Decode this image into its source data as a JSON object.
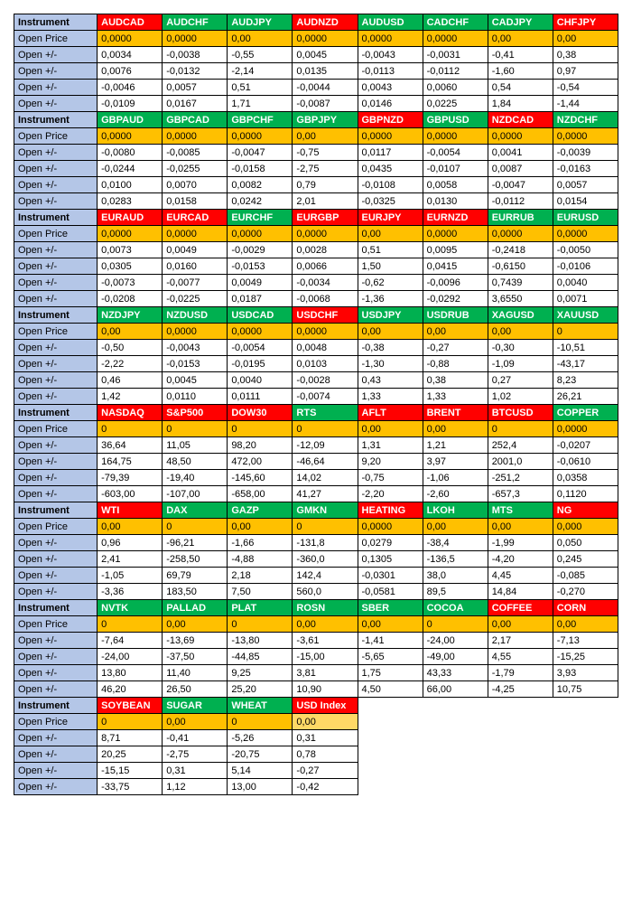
{
  "labels": {
    "instrument": "Instrument",
    "open_price": "Open Price",
    "open_pm": "Open +/-"
  },
  "colors": {
    "label_bg": "#b4c6e7",
    "open_price_bg": "#ffc000",
    "green": "#00b050",
    "red": "#ff0000",
    "white": "#ffffff",
    "lightorange": "#ffd966"
  },
  "typography": {
    "font_family": "Arial",
    "font_size_pt": 11,
    "header_weight": "bold"
  },
  "blocks": [
    {
      "instruments": [
        {
          "name": "AUDCAD",
          "color": "red"
        },
        {
          "name": "AUDCHF",
          "color": "green"
        },
        {
          "name": "AUDJPY",
          "color": "green"
        },
        {
          "name": "AUDNZD",
          "color": "red"
        },
        {
          "name": "AUDUSD",
          "color": "green"
        },
        {
          "name": "CADCHF",
          "color": "green"
        },
        {
          "name": "CADJPY",
          "color": "green"
        },
        {
          "name": "CHFJPY",
          "color": "red"
        }
      ],
      "open_price": [
        "0,0000",
        "0,0000",
        "0,00",
        "0,0000",
        "0,0000",
        "0,0000",
        "0,00",
        "0,00"
      ],
      "rows": [
        [
          "0,0034",
          "-0,0038",
          "-0,55",
          "0,0045",
          "-0,0043",
          "-0,0031",
          "-0,41",
          "0,38"
        ],
        [
          "0,0076",
          "-0,0132",
          "-2,14",
          "0,0135",
          "-0,0113",
          "-0,0112",
          "-1,60",
          "0,97"
        ],
        [
          "-0,0046",
          "0,0057",
          "0,51",
          "-0,0044",
          "0,0043",
          "0,0060",
          "0,54",
          "-0,54"
        ],
        [
          "-0,0109",
          "0,0167",
          "1,71",
          "-0,0087",
          "0,0146",
          "0,0225",
          "1,84",
          "-1,44"
        ]
      ]
    },
    {
      "instruments": [
        {
          "name": "GBPAUD",
          "color": "green"
        },
        {
          "name": "GBPCAD",
          "color": "green"
        },
        {
          "name": "GBPCHF",
          "color": "green"
        },
        {
          "name": "GBPJPY",
          "color": "green"
        },
        {
          "name": "GBPNZD",
          "color": "red"
        },
        {
          "name": "GBPUSD",
          "color": "green"
        },
        {
          "name": "NZDCAD",
          "color": "red"
        },
        {
          "name": "NZDCHF",
          "color": "green"
        }
      ],
      "open_price": [
        "0,0000",
        "0,0000",
        "0,0000",
        "0,00",
        "0,0000",
        "0,0000",
        "0,0000",
        "0,0000"
      ],
      "rows": [
        [
          "-0,0080",
          "-0,0085",
          "-0,0047",
          "-0,75",
          "0,0117",
          "-0,0054",
          "0,0041",
          "-0,0039"
        ],
        [
          "-0,0244",
          "-0,0255",
          "-0,0158",
          "-2,75",
          "0,0435",
          "-0,0107",
          "0,0087",
          "-0,0163"
        ],
        [
          "0,0100",
          "0,0070",
          "0,0082",
          "0,79",
          "-0,0108",
          "0,0058",
          "-0,0047",
          "0,0057"
        ],
        [
          "0,0283",
          "0,0158",
          "0,0242",
          "2,01",
          "-0,0325",
          "0,0130",
          "-0,0112",
          "0,0154"
        ]
      ]
    },
    {
      "instruments": [
        {
          "name": "EURAUD",
          "color": "red"
        },
        {
          "name": "EURCAD",
          "color": "red"
        },
        {
          "name": "EURCHF",
          "color": "green"
        },
        {
          "name": "EURGBP",
          "color": "red"
        },
        {
          "name": "EURJPY",
          "color": "red"
        },
        {
          "name": "EURNZD",
          "color": "red"
        },
        {
          "name": "EURRUB",
          "color": "green"
        },
        {
          "name": "EURUSD",
          "color": "green"
        }
      ],
      "open_price": [
        "0,0000",
        "0,0000",
        "0,0000",
        "0,0000",
        "0,00",
        "0,0000",
        "0,0000",
        "0,0000"
      ],
      "rows": [
        [
          "0,0073",
          "0,0049",
          "-0,0029",
          "0,0028",
          "0,51",
          "0,0095",
          "-0,2418",
          "-0,0050"
        ],
        [
          "0,0305",
          "0,0160",
          "-0,0153",
          "0,0066",
          "1,50",
          "0,0415",
          "-0,6150",
          "-0,0106"
        ],
        [
          "-0,0073",
          "-0,0077",
          "0,0049",
          "-0,0034",
          "-0,62",
          "-0,0096",
          "0,7439",
          "0,0040"
        ],
        [
          "-0,0208",
          "-0,0225",
          "0,0187",
          "-0,0068",
          "-1,36",
          "-0,0292",
          "3,6550",
          "0,0071"
        ]
      ]
    },
    {
      "instruments": [
        {
          "name": "NZDJPY",
          "color": "green"
        },
        {
          "name": "NZDUSD",
          "color": "green"
        },
        {
          "name": "USDCAD",
          "color": "green"
        },
        {
          "name": "USDCHF",
          "color": "red"
        },
        {
          "name": "USDJPY",
          "color": "green"
        },
        {
          "name": "USDRUB",
          "color": "green"
        },
        {
          "name": "XAGUSD",
          "color": "green"
        },
        {
          "name": "XAUUSD",
          "color": "green"
        }
      ],
      "open_price": [
        "0,00",
        "0,0000",
        "0,0000",
        "0,0000",
        "0,00",
        "0,00",
        "0,00",
        "0"
      ],
      "rows": [
        [
          "-0,50",
          "-0,0043",
          "-0,0054",
          "0,0048",
          "-0,38",
          "-0,27",
          "-0,30",
          "-10,51"
        ],
        [
          "-2,22",
          "-0,0153",
          "-0,0195",
          "0,0103",
          "-1,30",
          "-0,88",
          "-1,09",
          "-43,17"
        ],
        [
          "0,46",
          "0,0045",
          "0,0040",
          "-0,0028",
          "0,43",
          "0,38",
          "0,27",
          "8,23"
        ],
        [
          "1,42",
          "0,0110",
          "0,0111",
          "-0,0074",
          "1,33",
          "1,33",
          "1,02",
          "26,21"
        ]
      ]
    },
    {
      "instruments": [
        {
          "name": "NASDAQ",
          "color": "red"
        },
        {
          "name": "S&P500",
          "color": "red"
        },
        {
          "name": "DOW30",
          "color": "red"
        },
        {
          "name": "RTS",
          "color": "green"
        },
        {
          "name": "AFLT",
          "color": "red"
        },
        {
          "name": "BRENT",
          "color": "red"
        },
        {
          "name": "BTCUSD",
          "color": "red"
        },
        {
          "name": "COPPER",
          "color": "green"
        }
      ],
      "open_price": [
        "0",
        "0",
        "0",
        "0",
        "0,00",
        "0,00",
        "0",
        "0,0000"
      ],
      "rows": [
        [
          "36,64",
          "11,05",
          "98,20",
          "-12,09",
          "1,31",
          "1,21",
          "252,4",
          "-0,0207"
        ],
        [
          "164,75",
          "48,50",
          "472,00",
          "-46,64",
          "9,20",
          "3,97",
          "2001,0",
          "-0,0610"
        ],
        [
          "-79,39",
          "-19,40",
          "-145,60",
          "14,02",
          "-0,75",
          "-1,06",
          "-251,2",
          "0,0358"
        ],
        [
          "-603,00",
          "-107,00",
          "-658,00",
          "41,27",
          "-2,20",
          "-2,60",
          "-657,3",
          "0,1120"
        ]
      ]
    },
    {
      "instruments": [
        {
          "name": "WTI",
          "color": "red"
        },
        {
          "name": "DAX",
          "color": "green"
        },
        {
          "name": "GAZP",
          "color": "green"
        },
        {
          "name": "GMKN",
          "color": "green"
        },
        {
          "name": "HEATING",
          "color": "red"
        },
        {
          "name": "LKOH",
          "color": "green"
        },
        {
          "name": "MTS",
          "color": "green"
        },
        {
          "name": "NG",
          "color": "red"
        }
      ],
      "open_price": [
        "0,00",
        "0",
        "0,00",
        "0",
        "0,0000",
        "0,00",
        "0,00",
        "0,000"
      ],
      "rows": [
        [
          "0,96",
          "-96,21",
          "-1,66",
          "-131,8",
          "0,0279",
          "-38,4",
          "-1,99",
          "0,050"
        ],
        [
          "2,41",
          "-258,50",
          "-4,88",
          "-360,0",
          "0,1305",
          "-136,5",
          "-4,20",
          "0,245"
        ],
        [
          "-1,05",
          "69,79",
          "2,18",
          "142,4",
          "-0,0301",
          "38,0",
          "4,45",
          "-0,085"
        ],
        [
          "-3,36",
          "183,50",
          "7,50",
          "560,0",
          "-0,0581",
          "89,5",
          "14,84",
          "-0,270"
        ]
      ]
    },
    {
      "instruments": [
        {
          "name": "NVTK",
          "color": "green"
        },
        {
          "name": "PALLAD",
          "color": "green"
        },
        {
          "name": "PLAT",
          "color": "green"
        },
        {
          "name": "ROSN",
          "color": "green"
        },
        {
          "name": "SBER",
          "color": "green"
        },
        {
          "name": "COCOA",
          "color": "green"
        },
        {
          "name": "COFFEE",
          "color": "red"
        },
        {
          "name": "CORN",
          "color": "red"
        }
      ],
      "open_price": [
        "0",
        "0,00",
        "0",
        "0,00",
        "0,00",
        "0",
        "0,00",
        "0,00"
      ],
      "rows": [
        [
          "-7,64",
          "-13,69",
          "-13,80",
          "-3,61",
          "-1,41",
          "-24,00",
          "2,17",
          "-7,13"
        ],
        [
          "-24,00",
          "-37,50",
          "-44,85",
          "-15,00",
          "-5,65",
          "-49,00",
          "4,55",
          "-15,25"
        ],
        [
          "13,80",
          "11,40",
          "9,25",
          "3,81",
          "1,75",
          "43,33",
          "-1,79",
          "3,93"
        ],
        [
          "46,20",
          "26,50",
          "25,20",
          "10,90",
          "4,50",
          "66,00",
          "-4,25",
          "10,75"
        ]
      ]
    },
    {
      "cols": 4,
      "instruments": [
        {
          "name": "SOYBEAN",
          "color": "red"
        },
        {
          "name": "SUGAR",
          "color": "green"
        },
        {
          "name": "WHEAT",
          "color": "green"
        },
        {
          "name": "USD Index",
          "color": "red"
        }
      ],
      "open_price": [
        "0",
        "0,00",
        "0",
        "0,00"
      ],
      "open_price_last_light": true,
      "rows": [
        [
          "8,71",
          "-0,41",
          "-5,26",
          "0,31"
        ],
        [
          "20,25",
          "-2,75",
          "-20,75",
          "0,78"
        ],
        [
          "-15,15",
          "0,31",
          "5,14",
          "-0,27"
        ],
        [
          "-33,75",
          "1,12",
          "13,00",
          "-0,42"
        ]
      ]
    }
  ]
}
